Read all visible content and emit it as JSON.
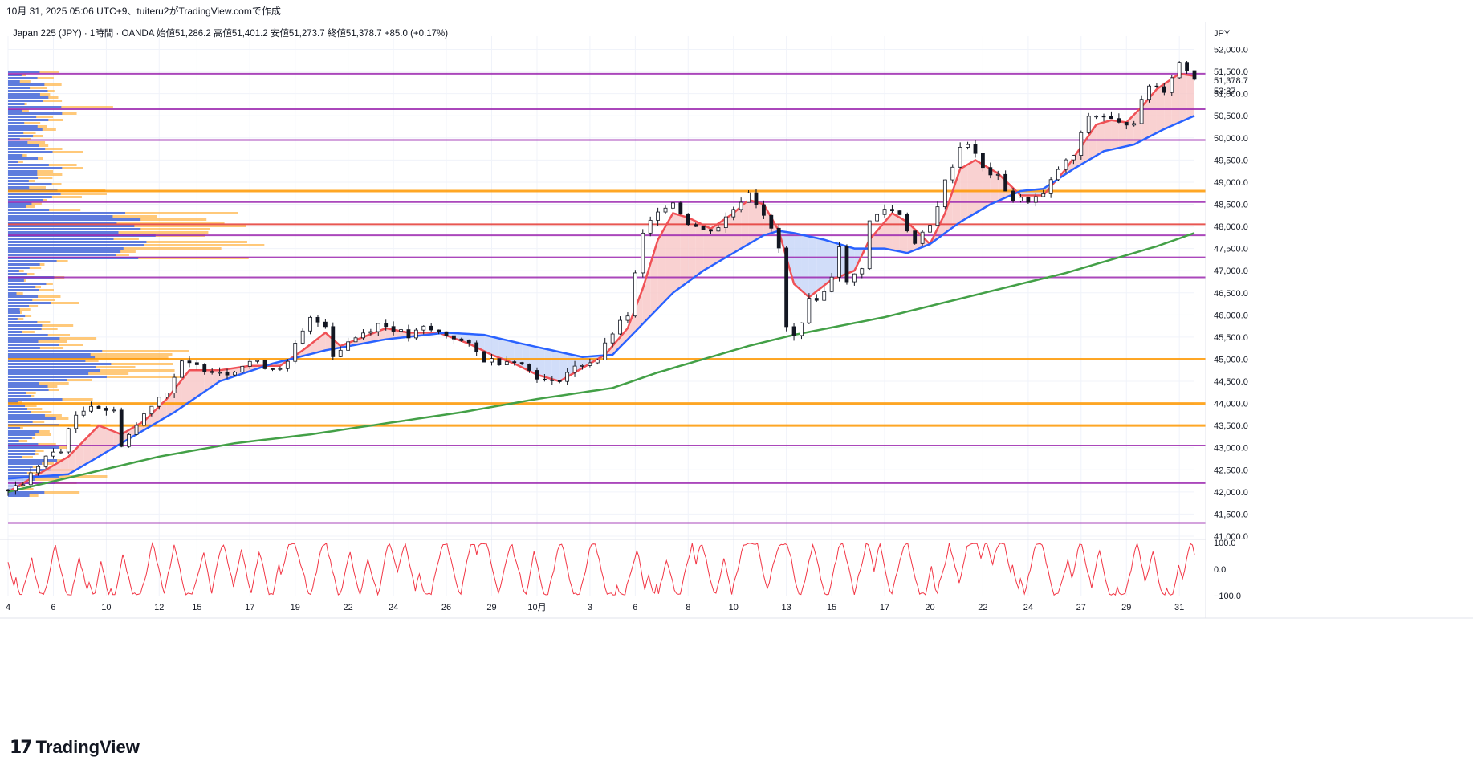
{
  "header": {
    "timestamp_line": "10月 31, 2025 05:06 UTC+9、tuiteru2がTradingView.comで作成",
    "symbol_line": "Japan 225 (JPY) · 1時間 · OANDA  始値51,286.2  高値51,401.2  安値51,273.7  終値51,378.7  +85.0 (+0.17%)"
  },
  "brand": {
    "name": "TradingView",
    "logo_icon": "tradingview-logo-icon"
  },
  "chart_data": {
    "type": "line",
    "currency": "JPY",
    "last_price": "51,378.7",
    "countdown": "53:37",
    "y_ticks": [
      "52,000.0",
      "51,500.0",
      "51,000.0",
      "50,500.0",
      "50,000.0",
      "49,500.0",
      "49,000.0",
      "48,500.0",
      "48,000.0",
      "47,500.0",
      "47,000.0",
      "46,500.0",
      "46,000.0",
      "45,500.0",
      "45,000.0",
      "44,500.0",
      "44,000.0",
      "43,500.0",
      "43,000.0",
      "42,500.0",
      "42,000.0",
      "41,500.0",
      "41,000.0"
    ],
    "y_range": [
      41000,
      52300
    ],
    "x_ticks": [
      "4",
      "6",
      "10",
      "12",
      "15",
      "17",
      "19",
      "22",
      "24",
      "26",
      "29",
      "10月",
      "3",
      "6",
      "8",
      "10",
      "13",
      "15",
      "17",
      "20",
      "22",
      "24",
      "27",
      "29",
      "31"
    ],
    "x_tick_index": [
      0,
      6,
      13,
      20,
      25,
      32,
      38,
      45,
      51,
      58,
      64,
      70,
      77,
      83,
      90,
      96,
      103,
      109,
      116,
      122,
      129,
      135,
      142,
      148,
      155
    ],
    "x_count": 158,
    "price_keys": [
      [
        0,
        42050
      ],
      [
        2,
        42200
      ],
      [
        5,
        42800
      ],
      [
        7,
        42900
      ],
      [
        8,
        43500
      ],
      [
        11,
        44000
      ],
      [
        14,
        43800
      ],
      [
        15,
        43100
      ],
      [
        17,
        43500
      ],
      [
        19,
        44000
      ],
      [
        21,
        44300
      ],
      [
        23,
        44900
      ],
      [
        26,
        44800
      ],
      [
        29,
        44700
      ],
      [
        32,
        44950
      ],
      [
        35,
        44800
      ],
      [
        37,
        44900
      ],
      [
        38,
        45300
      ],
      [
        40,
        45900
      ],
      [
        42,
        45800
      ],
      [
        43,
        45100
      ],
      [
        45,
        45400
      ],
      [
        47,
        45600
      ],
      [
        49,
        45800
      ],
      [
        51,
        45700
      ],
      [
        53,
        45500
      ],
      [
        55,
        45700
      ],
      [
        57,
        45600
      ],
      [
        59,
        45500
      ],
      [
        61,
        45300
      ],
      [
        63,
        45000
      ],
      [
        65,
        44950
      ],
      [
        67,
        45000
      ],
      [
        69,
        44750
      ],
      [
        71,
        44500
      ],
      [
        72,
        44450
      ],
      [
        74,
        44700
      ],
      [
        76,
        44900
      ],
      [
        78,
        45000
      ],
      [
        80,
        45600
      ],
      [
        82,
        46000
      ],
      [
        84,
        47800
      ],
      [
        86,
        48400
      ],
      [
        88,
        48550
      ],
      [
        90,
        48100
      ],
      [
        92,
        47900
      ],
      [
        94,
        48000
      ],
      [
        96,
        48400
      ],
      [
        98,
        48800
      ],
      [
        100,
        48300
      ],
      [
        102,
        47500
      ],
      [
        103,
        45700
      ],
      [
        104,
        45500
      ],
      [
        106,
        46300
      ],
      [
        108,
        46500
      ],
      [
        109,
        46900
      ],
      [
        110,
        47600
      ],
      [
        111,
        46700
      ],
      [
        113,
        47100
      ],
      [
        114,
        48100
      ],
      [
        116,
        48400
      ],
      [
        118,
        48300
      ],
      [
        120,
        47600
      ],
      [
        122,
        48000
      ],
      [
        124,
        49000
      ],
      [
        126,
        49800
      ],
      [
        127,
        49900
      ],
      [
        129,
        49300
      ],
      [
        131,
        49100
      ],
      [
        133,
        48600
      ],
      [
        135,
        48600
      ],
      [
        137,
        48700
      ],
      [
        139,
        49300
      ],
      [
        141,
        49600
      ],
      [
        143,
        50500
      ],
      [
        145,
        50500
      ],
      [
        147,
        50300
      ],
      [
        149,
        50400
      ],
      [
        151,
        51200
      ],
      [
        153,
        51100
      ],
      [
        155,
        51700
      ],
      [
        157,
        51380
      ]
    ],
    "series": [
      {
        "name": "",
        "color": "#f05156",
        "keys": [
          [
            0,
            42000
          ],
          [
            4,
            42400
          ],
          [
            8,
            42800
          ],
          [
            12,
            43500
          ],
          [
            15,
            43300
          ],
          [
            18,
            43600
          ],
          [
            21,
            44100
          ],
          [
            24,
            44750
          ],
          [
            28,
            44750
          ],
          [
            32,
            44850
          ],
          [
            36,
            44850
          ],
          [
            39,
            45200
          ],
          [
            42,
            45600
          ],
          [
            44,
            45300
          ],
          [
            47,
            45500
          ],
          [
            50,
            45700
          ],
          [
            53,
            45600
          ],
          [
            57,
            45600
          ],
          [
            61,
            45350
          ],
          [
            64,
            45100
          ],
          [
            67,
            44900
          ],
          [
            70,
            44650
          ],
          [
            73,
            44500
          ],
          [
            76,
            44800
          ],
          [
            79,
            45100
          ],
          [
            82,
            45700
          ],
          [
            84,
            46600
          ],
          [
            86,
            47700
          ],
          [
            88,
            48300
          ],
          [
            90,
            48200
          ],
          [
            93,
            47950
          ],
          [
            96,
            48300
          ],
          [
            98,
            48600
          ],
          [
            100,
            48500
          ],
          [
            102,
            47900
          ],
          [
            104,
            46700
          ],
          [
            106,
            46400
          ],
          [
            109,
            46800
          ],
          [
            112,
            47000
          ],
          [
            114,
            47700
          ],
          [
            117,
            48300
          ],
          [
            119,
            48100
          ],
          [
            122,
            47600
          ],
          [
            124,
            48300
          ],
          [
            126,
            49300
          ],
          [
            128,
            49500
          ],
          [
            131,
            49200
          ],
          [
            134,
            48700
          ],
          [
            137,
            48700
          ],
          [
            140,
            49300
          ],
          [
            142,
            49800
          ],
          [
            144,
            50300
          ],
          [
            146,
            50400
          ],
          [
            148,
            50350
          ],
          [
            150,
            50700
          ],
          [
            152,
            51100
          ],
          [
            155,
            51450
          ],
          [
            157,
            51400
          ]
        ]
      },
      {
        "name": "",
        "color": "#2962ff",
        "keys": [
          [
            0,
            42300
          ],
          [
            8,
            42400
          ],
          [
            15,
            43100
          ],
          [
            22,
            43800
          ],
          [
            28,
            44500
          ],
          [
            35,
            44900
          ],
          [
            42,
            45200
          ],
          [
            50,
            45450
          ],
          [
            58,
            45600
          ],
          [
            63,
            45550
          ],
          [
            68,
            45350
          ],
          [
            72,
            45200
          ],
          [
            76,
            45050
          ],
          [
            80,
            45100
          ],
          [
            84,
            45800
          ],
          [
            88,
            46500
          ],
          [
            92,
            47000
          ],
          [
            96,
            47400
          ],
          [
            100,
            47800
          ],
          [
            102,
            47900
          ],
          [
            104,
            47850
          ],
          [
            108,
            47700
          ],
          [
            112,
            47500
          ],
          [
            116,
            47500
          ],
          [
            119,
            47400
          ],
          [
            122,
            47600
          ],
          [
            126,
            48100
          ],
          [
            130,
            48500
          ],
          [
            134,
            48800
          ],
          [
            137,
            48850
          ],
          [
            141,
            49300
          ],
          [
            145,
            49700
          ],
          [
            149,
            49850
          ],
          [
            153,
            50200
          ],
          [
            157,
            50500
          ]
        ]
      },
      {
        "name": "",
        "color": "#43a047",
        "keys": [
          [
            0,
            42000
          ],
          [
            10,
            42400
          ],
          [
            20,
            42800
          ],
          [
            30,
            43100
          ],
          [
            40,
            43300
          ],
          [
            50,
            43550
          ],
          [
            60,
            43800
          ],
          [
            70,
            44100
          ],
          [
            80,
            44350
          ],
          [
            86,
            44700
          ],
          [
            92,
            45000
          ],
          [
            98,
            45300
          ],
          [
            104,
            45550
          ],
          [
            110,
            45750
          ],
          [
            116,
            45950
          ],
          [
            122,
            46200
          ],
          [
            128,
            46450
          ],
          [
            134,
            46700
          ],
          [
            140,
            46950
          ],
          [
            146,
            47250
          ],
          [
            152,
            47550
          ],
          [
            157,
            47850
          ]
        ]
      }
    ],
    "horizontal_levels": [
      {
        "price": 51450,
        "color": "#9c27b0"
      },
      {
        "price": 50650,
        "color": "#9c27b0"
      },
      {
        "price": 49950,
        "color": "#9c27b0"
      },
      {
        "price": 48800,
        "color": "#ff9800"
      },
      {
        "price": 48550,
        "color": "#9c27b0"
      },
      {
        "price": 48050,
        "color": "#e53935"
      },
      {
        "price": 47800,
        "color": "#9c27b0"
      },
      {
        "price": 47300,
        "color": "#9c27b0"
      },
      {
        "price": 46850,
        "color": "#9c27b0"
      },
      {
        "price": 45000,
        "color": "#ff9800"
      },
      {
        "price": 44000,
        "color": "#ff9800"
      },
      {
        "price": 43500,
        "color": "#ff9800"
      },
      {
        "price": 43050,
        "color": "#9c27b0"
      },
      {
        "price": 42200,
        "color": "#9c27b0"
      },
      {
        "price": 41300,
        "color": "#9c27b0"
      }
    ],
    "volume_profile": {
      "blue": "#2962ff",
      "orange": "#ffb74d"
    },
    "oscillator": {
      "color": "#f23645",
      "y_ticks": [
        "100.0",
        "0.0",
        "−100.0"
      ],
      "y_range": [
        -100,
        100
      ]
    },
    "colors": {
      "fill_bull": "#f7c6c6",
      "fill_bear": "#c5d4f7",
      "candle": "#131722",
      "grid": "#f0f3fa"
    }
  }
}
